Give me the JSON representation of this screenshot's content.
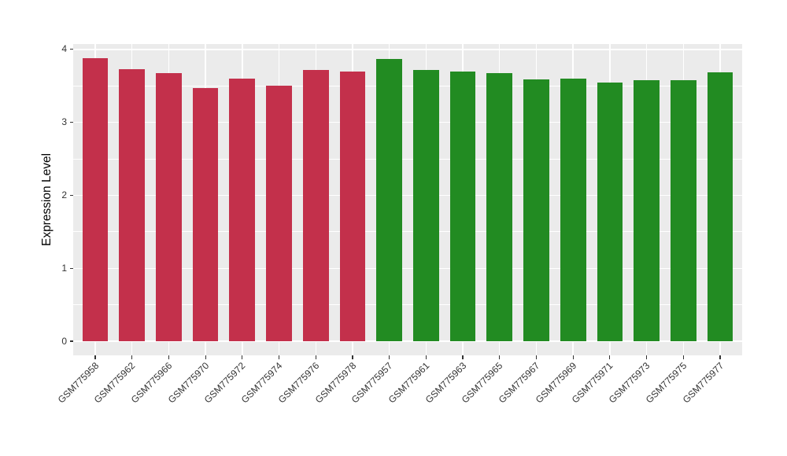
{
  "chart_data": {
    "type": "bar",
    "title": "",
    "xlabel": "",
    "ylabel": "Expression Level",
    "categories": [
      "GSM775958",
      "GSM775962",
      "GSM775966",
      "GSM775970",
      "GSM775972",
      "GSM775974",
      "GSM775976",
      "GSM775978",
      "GSM775957",
      "GSM775961",
      "GSM775963",
      "GSM775965",
      "GSM775967",
      "GSM775969",
      "GSM775971",
      "GSM775973",
      "GSM775975",
      "GSM775977"
    ],
    "values": [
      3.88,
      3.73,
      3.68,
      3.47,
      3.6,
      3.5,
      3.72,
      3.7,
      3.87,
      3.72,
      3.7,
      3.68,
      3.59,
      3.6,
      3.55,
      3.58,
      3.58,
      3.69
    ],
    "bar_colors": [
      "#C3304B",
      "#C3304B",
      "#C3304B",
      "#C3304B",
      "#C3304B",
      "#C3304B",
      "#C3304B",
      "#C3304B",
      "#228B22",
      "#228B22",
      "#228B22",
      "#228B22",
      "#228B22",
      "#228B22",
      "#228B22",
      "#228B22",
      "#228B22",
      "#228B22"
    ],
    "group_colors": {
      "left_group": "#C3304B",
      "right_group": "#228B22"
    },
    "yticks": [
      0,
      1,
      2,
      3,
      4
    ],
    "yminorticks": [
      0.5,
      1.5,
      2.5,
      3.5
    ],
    "ylim": [
      -0.194,
      4.074
    ],
    "legend": "none",
    "grid": "on",
    "panel_background": "#EBEBEB",
    "gridline_color": "#FFFFFF",
    "tick_mark_color": "#333333",
    "tick_label_color": "#333333",
    "axis_title_color": "#000000"
  }
}
